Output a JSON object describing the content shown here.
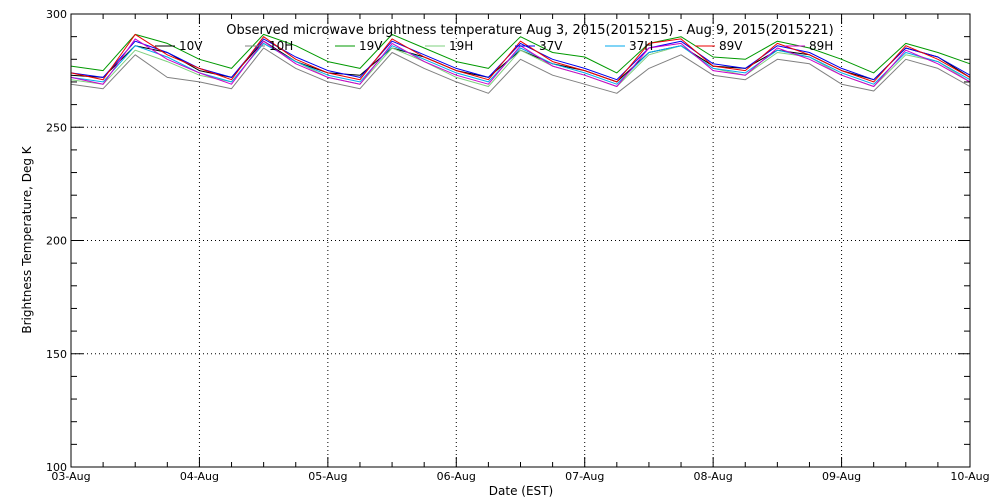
{
  "chart_data": {
    "type": "line",
    "title": "Observed microwave brightness temperature Aug  3, 2015(2015215) - Aug  9, 2015(2015221)",
    "xlabel": "Date (EST)",
    "ylabel": "Brightness Temperature, Deg K",
    "ylim": [
      100,
      300
    ],
    "yticks": [
      100,
      150,
      200,
      250,
      300
    ],
    "xlim": [
      "2015-08-03",
      "2015-08-10"
    ],
    "xticks": [
      "03-Aug",
      "04-Aug",
      "05-Aug",
      "06-Aug",
      "07-Aug",
      "08-Aug",
      "09-Aug",
      "10-Aug"
    ],
    "grid": true,
    "legend_position": "top",
    "x": [
      "2015-08-03T00:00",
      "2015-08-03T06:00",
      "2015-08-03T12:00",
      "2015-08-03T18:00",
      "2015-08-04T00:00",
      "2015-08-04T06:00",
      "2015-08-04T12:00",
      "2015-08-04T18:00",
      "2015-08-05T00:00",
      "2015-08-05T06:00",
      "2015-08-05T12:00",
      "2015-08-05T18:00",
      "2015-08-06T00:00",
      "2015-08-06T06:00",
      "2015-08-06T12:00",
      "2015-08-06T18:00",
      "2015-08-07T00:00",
      "2015-08-07T06:00",
      "2015-08-07T12:00",
      "2015-08-07T18:00",
      "2015-08-08T00:00",
      "2015-08-08T06:00",
      "2015-08-08T12:00",
      "2015-08-08T18:00",
      "2015-08-09T00:00",
      "2015-08-09T06:00",
      "2015-08-09T12:00",
      "2015-08-09T18:00",
      "2015-08-10T00:00"
    ],
    "series": [
      {
        "name": "10V",
        "color": "#000000",
        "values": [
          273,
          272,
          286,
          283,
          275,
          272,
          288,
          279,
          274,
          273,
          285,
          281,
          275,
          272,
          284,
          278,
          275,
          270,
          283,
          286,
          277,
          276,
          284,
          282,
          275,
          271,
          285,
          281,
          272
        ]
      },
      {
        "name": "10H",
        "color": "#808080",
        "values": [
          269,
          267,
          282,
          272,
          270,
          267,
          285,
          276,
          270,
          267,
          283,
          276,
          270,
          265,
          280,
          273,
          269,
          265,
          276,
          282,
          273,
          271,
          280,
          278,
          269,
          266,
          280,
          276,
          268
        ]
      },
      {
        "name": "19V",
        "color": "#009900",
        "values": [
          277,
          275,
          291,
          287,
          280,
          276,
          291,
          286,
          279,
          276,
          291,
          285,
          279,
          276,
          290,
          283,
          281,
          274,
          287,
          290,
          281,
          280,
          288,
          285,
          280,
          274,
          287,
          283,
          278
        ]
      },
      {
        "name": "19H",
        "color": "#7fd07f",
        "values": [
          271,
          269,
          284,
          279,
          273,
          270,
          287,
          279,
          272,
          269,
          285,
          279,
          272,
          268,
          284,
          277,
          273,
          268,
          282,
          286,
          276,
          273,
          283,
          281,
          273,
          268,
          282,
          279,
          270
        ]
      },
      {
        "name": "37V",
        "color": "#0000ee",
        "values": [
          274,
          272,
          288,
          283,
          276,
          272,
          289,
          281,
          275,
          272,
          288,
          282,
          276,
          272,
          287,
          280,
          276,
          271,
          285,
          288,
          278,
          276,
          286,
          283,
          276,
          271,
          285,
          281,
          273
        ]
      },
      {
        "name": "37H",
        "color": "#00aaee",
        "values": [
          272,
          270,
          286,
          281,
          274,
          270,
          287,
          279,
          273,
          270,
          286,
          280,
          274,
          270,
          285,
          278,
          274,
          269,
          283,
          286,
          276,
          274,
          284,
          281,
          274,
          269,
          283,
          279,
          271
        ]
      },
      {
        "name": "89V",
        "color": "#ee0000",
        "values": [
          274,
          271,
          291,
          282,
          276,
          271,
          290,
          280,
          274,
          271,
          289,
          281,
          275,
          271,
          288,
          279,
          275,
          270,
          287,
          289,
          277,
          275,
          287,
          282,
          275,
          270,
          286,
          280,
          272
        ]
      },
      {
        "name": "89H",
        "color": "#cc00cc",
        "values": [
          272,
          269,
          289,
          280,
          274,
          269,
          288,
          278,
          272,
          269,
          287,
          279,
          273,
          269,
          286,
          277,
          273,
          268,
          285,
          287,
          275,
          273,
          285,
          280,
          273,
          268,
          284,
          278,
          270
        ]
      }
    ]
  }
}
